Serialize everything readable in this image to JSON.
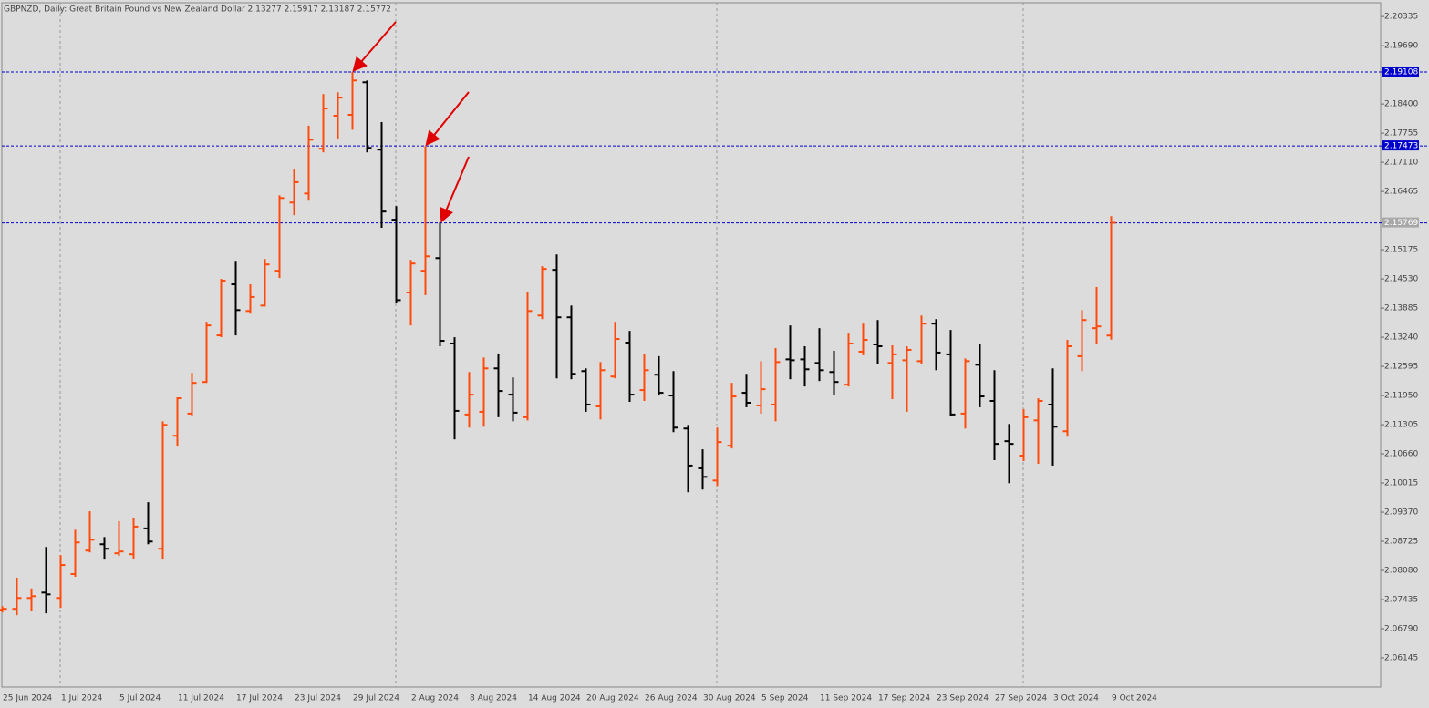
{
  "chart_data": {
    "type": "ohlc",
    "title": "GBPNZD, Daily:  Great Britain Pound vs New Zealand Dollar  2.13277 2.15917 2.13187 2.15772",
    "categories": [
      "25 Jun 2024",
      null,
      null,
      null,
      "1 Jul 2024",
      null,
      null,
      null,
      "5 Jul 2024",
      null,
      null,
      null,
      "11 Jul 2024",
      null,
      null,
      null,
      "17 Jul 2024",
      null,
      null,
      null,
      "23 Jul 2024",
      null,
      null,
      null,
      "29 Jul 2024",
      null,
      null,
      null,
      "2 Aug 2024",
      null,
      null,
      null,
      "8 Aug 2024",
      null,
      null,
      null,
      "14 Aug 2024",
      null,
      null,
      null,
      "20 Aug 2024",
      null,
      null,
      null,
      "26 Aug 2024",
      null,
      null,
      null,
      "30 Aug 2024",
      null,
      null,
      null,
      "5 Sep 2024",
      null,
      null,
      null,
      "11 Sep 2024",
      null,
      null,
      null,
      "17 Sep 2024",
      null,
      null,
      null,
      "23 Sep 2024",
      null,
      null,
      null,
      "27 Sep 2024",
      null,
      null,
      null,
      "3 Oct 2024",
      null,
      null,
      null,
      "9 Oct 2024"
    ],
    "open": [
      2.0721,
      2.0723,
      2.0747,
      2.0759,
      2.0747,
      2.08,
      2.0852,
      2.0866,
      2.0846,
      2.0844,
      2.0901,
      2.0856,
      2.1106,
      2.1155,
      2.1225,
      2.1328,
      2.1441,
      2.1382,
      2.1394,
      2.1471,
      2.1622,
      2.1642,
      2.1741,
      2.1814,
      2.1816,
      2.1888,
      2.1739,
      2.1584,
      2.1423,
      2.1471,
      2.1499,
      2.131,
      2.1153,
      2.1159,
      2.1255,
      2.1197,
      2.1147,
      2.1372,
      2.1473,
      2.1368,
      2.1249,
      2.1171,
      2.1237,
      2.1312,
      2.1207,
      2.1241,
      2.1195,
      2.1122,
      2.1034,
      2.1007,
      2.1084,
      2.1201,
      2.1173,
      2.1175,
      2.1275,
      2.1275,
      2.1267,
      2.1247,
      2.1219,
      2.1292,
      2.1308,
      2.1267,
      2.1273,
      2.1271,
      2.1354,
      2.1286,
      2.1155,
      2.1263,
      2.1183,
      2.1094,
      2.1062,
      2.114,
      2.1175,
      2.1116,
      2.1282,
      2.1344,
      2.13277
    ],
    "high": [
      2.0729,
      2.0792,
      2.0768,
      2.086,
      2.0842,
      2.0898,
      2.0939,
      2.0882,
      2.0917,
      2.0923,
      2.0959,
      2.1138,
      2.1191,
      2.1245,
      2.1358,
      2.1453,
      2.1493,
      2.1441,
      2.1497,
      2.1638,
      2.1695,
      2.1792,
      2.1862,
      2.1866,
      2.1911,
      2.1892,
      2.18,
      2.1614,
      2.1495,
      2.1747,
      2.1578,
      2.1324,
      2.1247,
      2.1279,
      2.1288,
      2.1235,
      2.1425,
      2.1481,
      2.1507,
      2.1394,
      2.1255,
      2.1269,
      2.1358,
      2.1338,
      2.1286,
      2.1282,
      2.1249,
      2.113,
      2.1076,
      2.1124,
      2.1223,
      2.1243,
      2.1271,
      2.13,
      2.135,
      2.1304,
      2.1344,
      2.1294,
      2.1332,
      2.1354,
      2.1362,
      2.1306,
      2.1304,
      2.1372,
      2.1364,
      2.134,
      2.1277,
      2.131,
      2.1251,
      2.1132,
      2.1165,
      2.1189,
      2.1255,
      2.1318,
      2.1384,
      2.1435,
      2.15917
    ],
    "low": [
      2.0715,
      2.0709,
      2.0719,
      2.0713,
      2.0725,
      2.0794,
      2.0848,
      2.0832,
      2.084,
      2.0834,
      2.0866,
      2.0832,
      2.1082,
      2.115,
      2.1223,
      2.1324,
      2.1328,
      2.1376,
      2.1392,
      2.1455,
      2.1594,
      2.1626,
      2.1733,
      2.1763,
      2.1783,
      2.1733,
      2.1566,
      2.14,
      2.135,
      2.1417,
      2.1304,
      2.1098,
      2.1124,
      2.1126,
      2.1147,
      2.1138,
      2.114,
      2.1364,
      2.1233,
      2.1231,
      2.1159,
      2.1142,
      2.1233,
      2.1181,
      2.1183,
      2.1195,
      2.1114,
      2.0981,
      2.0987,
      2.0995,
      2.1078,
      2.1169,
      2.1155,
      2.1138,
      2.1231,
      2.1215,
      2.1227,
      2.1195,
      2.1215,
      2.1284,
      2.1265,
      2.1187,
      2.1159,
      2.1265,
      2.1251,
      2.115,
      2.1122,
      2.1169,
      2.1052,
      2.1001,
      2.105,
      2.1044,
      2.104,
      2.1104,
      2.1249,
      2.131,
      2.13187
    ],
    "close": [
      2.0723,
      2.0747,
      2.0751,
      2.0755,
      2.082,
      2.087,
      2.0876,
      2.0856,
      2.085,
      2.0905,
      2.0872,
      2.113,
      2.1189,
      2.1223,
      2.135,
      2.1449,
      2.1384,
      2.1413,
      2.1485,
      2.1632,
      2.1667,
      2.1761,
      2.183,
      2.1854,
      2.1892,
      2.1743,
      2.1602,
      2.1406,
      2.1487,
      2.1503,
      2.1316,
      2.1161,
      2.1197,
      2.1255,
      2.1205,
      2.1157,
      2.1382,
      2.1475,
      2.1368,
      2.1243,
      2.1175,
      2.1251,
      2.132,
      2.1197,
      2.1251,
      2.1201,
      2.1124,
      2.104,
      2.1015,
      2.1092,
      2.1193,
      2.1179,
      2.1209,
      2.1269,
      2.1273,
      2.1253,
      2.1251,
      2.1225,
      2.131,
      2.1318,
      2.1304,
      2.1286,
      2.1296,
      2.1354,
      2.129,
      2.1153,
      2.1271,
      2.1193,
      2.1088,
      2.1088,
      2.1147,
      2.1183,
      2.1126,
      2.1304,
      2.1362,
      2.1348,
      2.15772
    ],
    "up_color": "#ff4a0a",
    "down_color": "#000000",
    "ylim": [
      2.055,
      2.2064
    ],
    "yticks": [
      2.20335,
      {
        "value": 2.1969,
        "label": "2.19690"
      },
      {
        "value": 2.184,
        "label": "2.18400"
      },
      2.17755,
      {
        "value": 2.1711,
        "label": "2.17110"
      },
      2.16465,
      2.15175,
      {
        "value": 2.1453,
        "label": "2.14530"
      },
      2.13885,
      {
        "value": 2.1324,
        "label": "2.13240"
      },
      2.12595,
      {
        "value": 2.1195,
        "label": "2.11950"
      },
      2.11305,
      {
        "value": 2.1066,
        "label": "2.10660"
      },
      2.10015,
      {
        "value": 2.0937,
        "label": "2.09370"
      },
      2.08725,
      {
        "value": 2.0808,
        "label": "2.08080"
      },
      2.07435,
      {
        "value": 2.0679,
        "label": "2.06790"
      },
      2.06145
    ],
    "hlines": [
      {
        "value": 2.19108,
        "color": "#0000cd"
      },
      {
        "value": 2.17473,
        "color": "#0000cd"
      },
      {
        "value": 2.15769,
        "color": "#a8a8a8"
      }
    ]
  }
}
